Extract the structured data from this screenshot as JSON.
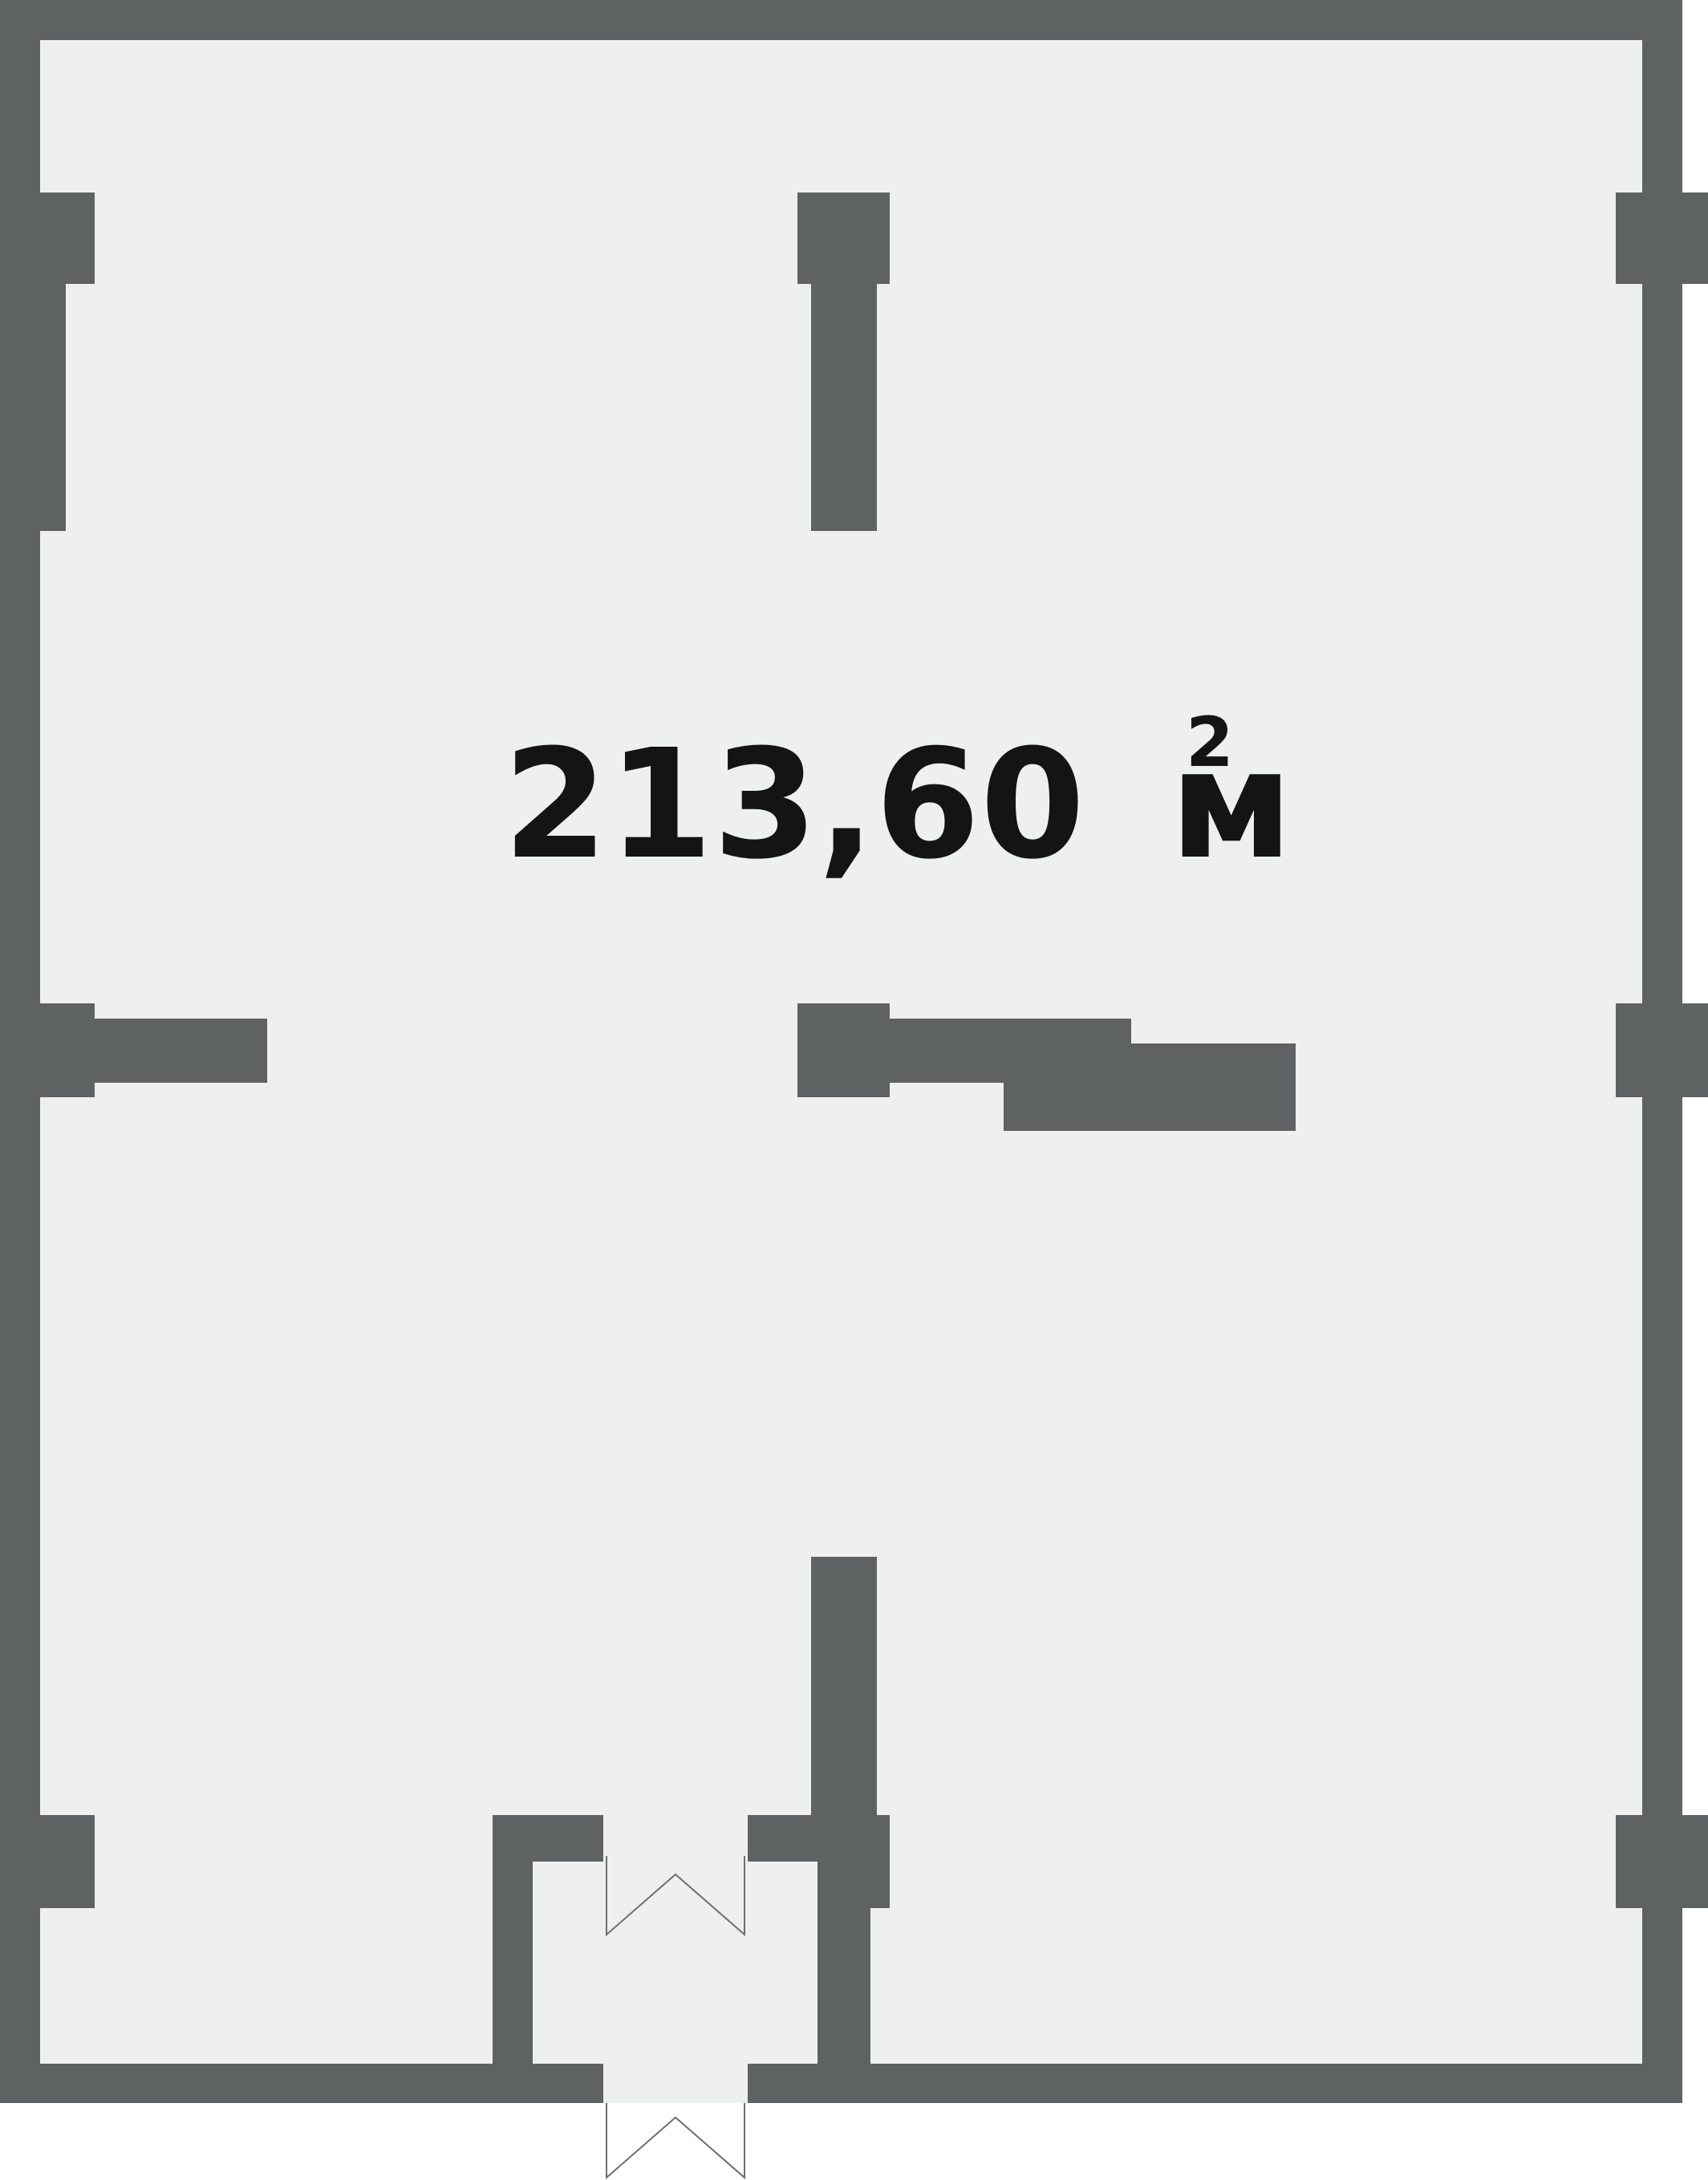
{
  "plan": {
    "area": {
      "value": "213,60",
      "unit": "м",
      "unit_power": "2"
    }
  },
  "colors": {
    "wall": "#5e6263",
    "floor": "#eef0ef",
    "text": "#141414",
    "door_line": "#6b6f70",
    "background": "#ffffff"
  }
}
